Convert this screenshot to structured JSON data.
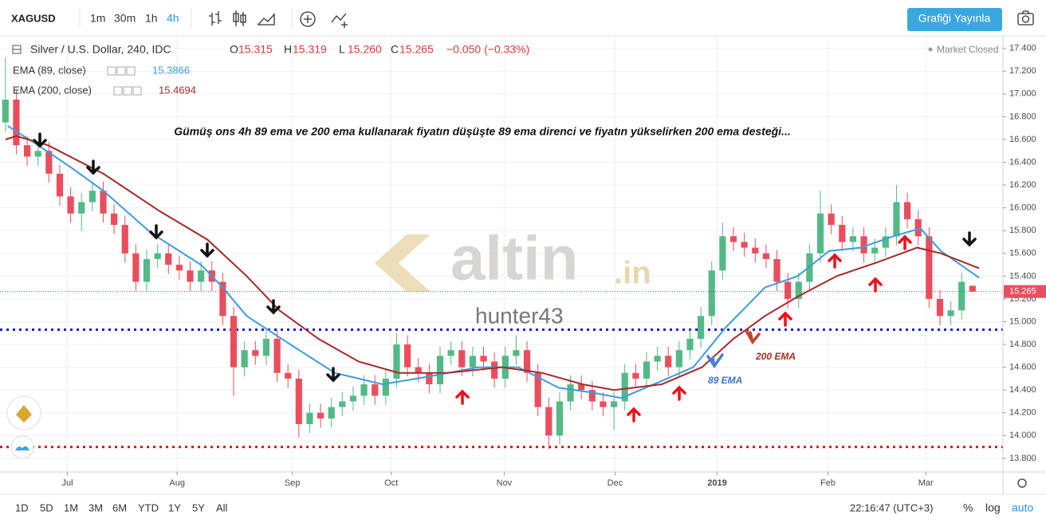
{
  "toolbar": {
    "symbol": "XAGUSD",
    "intervals": [
      "1m",
      "30m",
      "1h",
      "4h"
    ],
    "active_interval": 3,
    "publish": "Grafiği Yayınla"
  },
  "footer": {
    "ranges": [
      "1D",
      "5D",
      "1M",
      "3M",
      "6M",
      "YTD",
      "1Y",
      "5Y",
      "All"
    ],
    "clock": "22:16:47 (UTC+3)",
    "percent": "%",
    "log": "log",
    "auto": "auto"
  },
  "chart_data": {
    "type": "candlestick",
    "title": "Gümüş ons 4h 89 ema ve 200 ema kullanarak fiyatın düşüşte 89 ema direnci ve fiyatın yükselirken 200 ema desteği...",
    "legend_title": "Silver / U.S. Dollar, 240, IDC",
    "readout": [
      {
        "label": "O",
        "value": "15.315"
      },
      {
        "label": "H",
        "value": "15.319"
      },
      {
        "label": "L",
        "value": "15.260"
      },
      {
        "label": "C",
        "value": "15.265"
      }
    ],
    "change": "−0.050 (−0.33%)",
    "status": "Market Closed",
    "last_price_label": "15.265",
    "watermark": [
      "altin",
      ".in"
    ],
    "author": "hunter43",
    "annotations": [
      "89 EMA",
      "200 EMA"
    ],
    "up_color": "#53b987",
    "down_color": "#eb4d5c",
    "open": [
      16.75,
      16.95,
      16.55,
      16.45,
      16.5,
      16.3,
      16.1,
      15.95,
      16.05,
      16.15,
      15.95,
      15.85,
      15.6,
      15.35,
      15.55,
      15.6,
      15.5,
      15.45,
      15.35,
      15.45,
      15.35,
      15.05,
      14.6,
      14.75,
      14.7,
      14.85,
      14.55,
      14.5,
      14.1,
      14.2,
      14.15,
      14.25,
      14.3,
      14.35,
      14.45,
      14.35,
      14.5,
      14.8,
      14.6,
      14.55,
      14.45,
      14.7,
      14.75,
      14.6,
      14.7,
      14.65,
      14.5,
      14.7,
      14.75,
      14.55,
      14.25,
      14.0,
      14.3,
      14.45,
      14.4,
      14.3,
      14.25,
      14.3,
      14.55,
      14.5,
      14.65,
      14.7,
      14.6,
      14.75,
      14.85,
      15.05,
      15.45,
      15.75,
      15.7,
      15.65,
      15.6,
      15.55,
      15.35,
      15.2,
      15.35,
      15.6,
      15.95,
      15.85,
      15.7,
      15.75,
      15.6,
      15.65,
      15.75,
      16.05,
      15.9,
      15.75,
      15.2,
      15.05,
      15.1,
      15.315
    ],
    "high": [
      17.32,
      17.03,
      16.63,
      16.58,
      16.58,
      16.38,
      16.18,
      16.13,
      16.23,
      16.23,
      16.03,
      15.93,
      15.68,
      15.63,
      15.68,
      15.68,
      15.58,
      15.53,
      15.53,
      15.53,
      15.43,
      15.13,
      14.83,
      14.83,
      14.93,
      14.93,
      14.63,
      14.58,
      14.28,
      14.28,
      14.33,
      14.38,
      14.43,
      14.53,
      14.53,
      14.58,
      14.9,
      14.88,
      14.68,
      14.63,
      14.78,
      14.83,
      14.83,
      14.78,
      14.78,
      14.73,
      14.78,
      14.88,
      14.83,
      14.63,
      14.33,
      14.38,
      14.53,
      14.53,
      14.48,
      14.38,
      14.38,
      14.63,
      14.63,
      14.73,
      14.78,
      14.78,
      14.83,
      14.93,
      15.13,
      15.53,
      15.87,
      15.83,
      15.78,
      15.73,
      15.68,
      15.63,
      15.43,
      15.43,
      15.68,
      16.15,
      16.03,
      15.93,
      15.83,
      15.83,
      15.73,
      15.83,
      16.2,
      16.13,
      15.98,
      15.83,
      15.28,
      15.18,
      15.43,
      15.319
    ],
    "low": [
      16.67,
      16.47,
      16.37,
      16.37,
      16.22,
      16.02,
      15.87,
      15.8,
      15.97,
      15.87,
      15.77,
      15.52,
      15.27,
      15.27,
      15.47,
      15.42,
      15.37,
      15.27,
      15.27,
      15.27,
      14.97,
      14.35,
      14.52,
      14.62,
      14.62,
      14.47,
      14.42,
      13.98,
      14.02,
      14.07,
      14.07,
      14.17,
      14.22,
      14.27,
      14.27,
      14.27,
      14.42,
      14.52,
      14.47,
      14.37,
      14.37,
      14.62,
      14.52,
      14.52,
      14.57,
      14.42,
      14.42,
      14.62,
      14.47,
      14.17,
      13.88,
      13.92,
      14.22,
      14.32,
      14.22,
      14.17,
      14.05,
      14.22,
      14.42,
      14.42,
      14.57,
      14.52,
      14.52,
      14.67,
      14.77,
      14.97,
      15.37,
      15.62,
      15.57,
      15.52,
      15.47,
      15.27,
      15.12,
      15.12,
      15.27,
      15.52,
      15.77,
      15.62,
      15.62,
      15.52,
      15.52,
      15.57,
      15.67,
      15.82,
      15.67,
      15.12,
      14.97,
      14.97,
      15.02,
      15.26
    ],
    "close": [
      16.95,
      16.55,
      16.45,
      16.5,
      16.3,
      16.1,
      15.95,
      16.05,
      16.15,
      15.95,
      15.85,
      15.6,
      15.35,
      15.55,
      15.6,
      15.5,
      15.45,
      15.35,
      15.45,
      15.35,
      15.05,
      14.6,
      14.75,
      14.7,
      14.85,
      14.55,
      14.5,
      14.1,
      14.2,
      14.15,
      14.25,
      14.3,
      14.35,
      14.45,
      14.35,
      14.5,
      14.8,
      14.6,
      14.55,
      14.45,
      14.7,
      14.75,
      14.6,
      14.7,
      14.65,
      14.5,
      14.7,
      14.75,
      14.55,
      14.25,
      14.0,
      14.3,
      14.45,
      14.4,
      14.3,
      14.25,
      14.3,
      14.55,
      14.5,
      14.65,
      14.7,
      14.6,
      14.75,
      14.85,
      15.05,
      15.45,
      15.75,
      15.7,
      15.65,
      15.6,
      15.55,
      15.35,
      15.2,
      15.35,
      15.6,
      15.95,
      15.85,
      15.7,
      15.75,
      15.6,
      15.65,
      15.75,
      16.05,
      15.9,
      15.75,
      15.2,
      15.05,
      15.1,
      15.35,
      15.265
    ],
    "series": [
      {
        "name": "EMA (89, close)",
        "color": "#3d9be0",
        "value_label": "15.3866",
        "x": [
          0.2,
          3.0,
          6.1,
          9.0,
          13.4,
          18.0,
          20.0,
          22.2,
          25.9,
          30.3,
          34.7,
          39.1,
          43.5,
          47.2,
          50.9,
          53.8,
          56.7,
          60.4,
          63.3,
          66.3,
          69.9,
          72.9,
          75.8,
          78.7,
          81.7,
          84.2,
          86.1,
          89.6
        ],
        "values": [
          16.72,
          16.55,
          16.35,
          16.15,
          15.78,
          15.5,
          15.3,
          15.05,
          14.82,
          14.55,
          14.45,
          14.52,
          14.6,
          14.6,
          14.42,
          14.38,
          14.33,
          14.48,
          14.6,
          14.95,
          15.3,
          15.4,
          15.62,
          15.65,
          15.75,
          15.82,
          15.62,
          15.3866
        ]
      },
      {
        "name": "EMA (200, close)",
        "color": "#a52a2a",
        "value_label": "15.4694",
        "x": [
          0,
          1.0,
          3.9,
          9.0,
          14.2,
          18.6,
          22.2,
          25.2,
          28.8,
          32.5,
          36.2,
          40.6,
          45.7,
          49.4,
          53.1,
          56.0,
          60.4,
          64.1,
          67.0,
          69.9,
          72.9,
          76.5,
          80.2,
          83.9,
          86.1,
          89.6
        ],
        "values": [
          16.6,
          16.63,
          16.55,
          16.3,
          15.97,
          15.72,
          15.4,
          15.1,
          14.85,
          14.65,
          14.55,
          14.55,
          14.6,
          14.55,
          14.45,
          14.4,
          14.45,
          14.6,
          14.85,
          15.05,
          15.22,
          15.4,
          15.52,
          15.65,
          15.6,
          15.4694
        ]
      }
    ],
    "hlines": [
      {
        "value": 14.93,
        "color": "#1d1dd6"
      },
      {
        "value": 13.9,
        "color": "#e0101a"
      }
    ],
    "xlim": [
      -0.5,
      91.8
    ],
    "xticks": [
      {
        "value": 5.7,
        "label": "Jul"
      },
      {
        "value": 15.8,
        "label": "Aug"
      },
      {
        "value": 26.4,
        "label": "Sep"
      },
      {
        "value": 35.5,
        "label": "Oct"
      },
      {
        "value": 45.9,
        "label": "Nov"
      },
      {
        "value": 56.1,
        "label": "Dec"
      },
      {
        "value": 65.5,
        "label": "2019"
      },
      {
        "value": 75.7,
        "label": "Feb"
      },
      {
        "value": 84.7,
        "label": "Mar"
      }
    ],
    "ylim": [
      13.68,
      17.51
    ],
    "yticks": [
      {
        "value": 13.8,
        "label": "13.800"
      },
      {
        "value": 14.0,
        "label": "14.000"
      },
      {
        "value": 14.2,
        "label": "14.200"
      },
      {
        "value": 14.4,
        "label": "14.400"
      },
      {
        "value": 14.6,
        "label": "14.600"
      },
      {
        "value": 14.8,
        "label": "14.800"
      },
      {
        "value": 15.0,
        "label": "15.000"
      },
      {
        "value": 15.2,
        "label": "15.200"
      },
      {
        "value": 15.4,
        "label": "15.400"
      },
      {
        "value": 15.6,
        "label": "15.600"
      },
      {
        "value": 15.8,
        "label": "15.800"
      },
      {
        "value": 16.0,
        "label": "16.000"
      },
      {
        "value": 16.2,
        "label": "16.200"
      },
      {
        "value": 16.4,
        "label": "16.400"
      },
      {
        "value": 16.6,
        "label": "16.600"
      },
      {
        "value": 16.8,
        "label": "16.800"
      },
      {
        "value": 17.0,
        "label": "17.000"
      },
      {
        "value": 17.2,
        "label": "17.200"
      },
      {
        "value": 17.4,
        "label": "17.400"
      }
    ],
    "grid": true
  }
}
